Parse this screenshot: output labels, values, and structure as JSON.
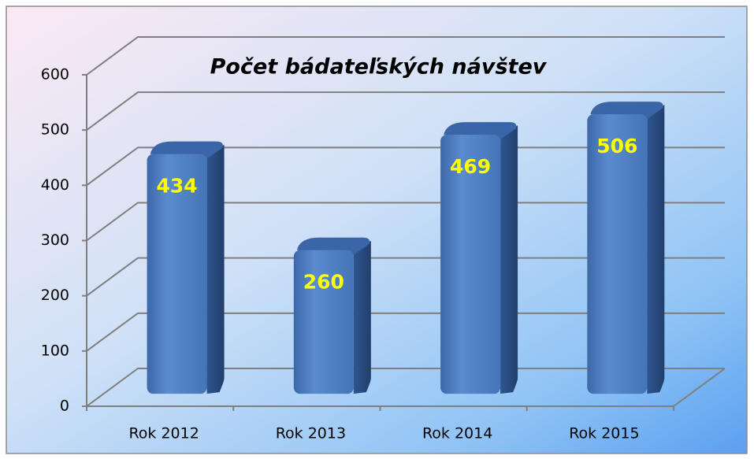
{
  "chart_data": {
    "type": "bar",
    "title": "Počet bádateľských návštev",
    "categories": [
      "Rok 2012",
      "Rok 2013",
      "Rok 2014",
      "Rok 2015"
    ],
    "values": [
      434,
      260,
      469,
      506
    ],
    "color": "#4f7fc0",
    "ylim": [
      0,
      600
    ],
    "yticks": [
      0,
      100,
      200,
      300,
      400,
      500,
      600
    ],
    "grid": true
  }
}
